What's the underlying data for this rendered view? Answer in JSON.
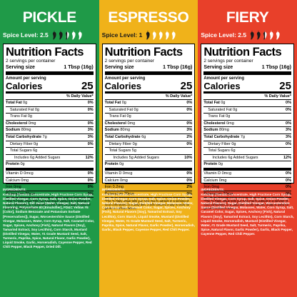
{
  "panels": [
    {
      "name": "PICKLE",
      "bg": "#1f9a48",
      "label_color": "#ffffff",
      "spice_label": "Spice Level: 2.5",
      "peppers_full": 2,
      "peppers_half": 1,
      "peppers_total": 5,
      "pepper_full_color": "#1a1a1a",
      "pepper_empty_color": "#ffffff",
      "ingredients": "Ketchup (Tomato Concentrate, High Fructose Corn Syrup, Distilled Vinegar, Corn Syrup, Salt, Spice, Onion Powder, Natural Flavors), Dill Juice (Water, Vinegar, Salt, Natural Flavoring, Polysorbate 80 [Emulsifier], FD&C Yellow #5 [Color], Sodium Benzoate and Potassium Sorbate [Preservatives]), Sugar, Worcestershire Sauce (Distilled Vinegar, Molasses, Water, Corn Syrup, Salt, Caramel Color, Sugar, Spices, Anchovy [Fish], Natural Flavors [Soy], Tamarind Extract, Soy Lecithin), Corn Starch, Mustard (Distilled Vinegar, Water, #1 Grade Mustard Seed, Salt, Turmeric, Paprika, Spice, Natural Flavor, Garlic Powder), Liquid Smoke, Garlic, Horseradish, Cayenne Pepper, Red Chili Pepper, Black Pepper, Dried Dill."
    },
    {
      "name": "ESPRESSO",
      "bg": "#f0b21a",
      "label_color": "#1a1a1a",
      "spice_label": "Spice Level: 1",
      "peppers_full": 1,
      "peppers_half": 0,
      "peppers_total": 5,
      "pepper_full_color": "#1a1a1a",
      "pepper_empty_color": "#ffffff",
      "ingredients": "Ketchup (Tomato Concentrate, High Fructose Corn Syrup, Distilled Vinegar, Corn Syrup, Salt, Spice, Onion Powder, Natural Flavors), Sugar, Distilled Vinegar, Molasses, Water, Corn Syrup, Salt, Caramel Color, Sugar, Spices, Anchovy [Fish], Natural Flavors [Soy], Tamarind Extract, Soy Lecithin), Corn Starch, Liquid Smoke, Mustard (Distilled Vinegar, Water, #1 Grade Mustard Seed, Salt, Turmeric, Paprika, Spice, Natural Flavor, Garlic Powder), Horseradish, Garlic, Black Pepper, Cayenne Pepper, Red Chili Pepper."
    },
    {
      "name": "FIERY",
      "bg": "#e8402a",
      "label_color": "#ffffff",
      "spice_label": "Spice Level: 2.5",
      "peppers_full": 2,
      "peppers_half": 1,
      "peppers_total": 5,
      "pepper_full_color": "#1a1a1a",
      "pepper_empty_color": "#ffffff",
      "ingredients": "Ketchup (Tomato Concentrate, High Fructose Corn Syrup, Distilled Vinegar, Corn Syrup, Salt, Spice, Onion Powder, Natural Flavors), Sugar, Distilled Vinegar, Worcestershire Sauce (Distilled Vinegar, Molasses, Water, Corn Syrup, Salt, Caramel Color, Sugar, Spices, Anchovy [Fish], Natural Flavors [Soy], Tamarind Extract, Soy Lecithin), Corn Starch, Liquid Smoke, Horseradish, Mustard (Distilled Vinegar, Water, #1 Grade Mustard Seed, Salt, Turmeric, Paprika, Spice, Natural Flavor, Garlic Powder), Garlic, Black Pepper, Cayenne Pepper, Red Chili Pepper."
    }
  ],
  "facts": {
    "title": "Nutrition Facts",
    "servings": "2 servings per container",
    "serving_label": "Serving size",
    "serving_value": "1 Tbsp (16g)",
    "amount_per": "Amount per serving",
    "calories_label": "Calories",
    "calories_value": "25",
    "dv_header": "% Daily Value*",
    "rows": [
      {
        "label": "Total Fat",
        "amt": "0g",
        "pct": "0%",
        "bold": true,
        "indent": 0
      },
      {
        "label": "Saturated Fat",
        "amt": "0g",
        "pct": "0%",
        "bold": false,
        "indent": 1
      },
      {
        "label": "Trans Fat",
        "amt": "0g",
        "pct": "",
        "bold": false,
        "indent": 1,
        "italic_trans": true
      },
      {
        "label": "Cholesterol",
        "amt": "0mg",
        "pct": "0%",
        "bold": true,
        "indent": 0
      },
      {
        "label": "Sodium",
        "amt": "80mg",
        "pct": "3%",
        "bold": true,
        "indent": 0
      },
      {
        "label": "Total Carbohydrate",
        "amt": "7g",
        "pct": "3%",
        "bold": true,
        "indent": 0
      },
      {
        "label": "Dietary Fiber",
        "amt": "0g",
        "pct": "0%",
        "bold": false,
        "indent": 1
      },
      {
        "label": "Total Sugars",
        "amt": "6g",
        "pct": "",
        "bold": false,
        "indent": 1
      },
      {
        "label": "Includes 6g Added Sugars",
        "amt": "",
        "pct": "12%",
        "bold": false,
        "indent": 2
      },
      {
        "label": "Protein",
        "amt": "0g",
        "pct": "",
        "bold": true,
        "indent": 0,
        "thick": true
      },
      {
        "label": "Vitamin D",
        "amt": "0mcg",
        "pct": "0%",
        "bold": false,
        "indent": 0
      },
      {
        "label": "Calcium",
        "amt": "0mg",
        "pct": "0%",
        "bold": false,
        "indent": 0
      },
      {
        "label": "Iron",
        "amt": "0mg",
        "pct": "0%",
        "bold": false,
        "indent": 0
      },
      {
        "label": "Potassium",
        "amt": "30mg",
        "pct": "0%",
        "bold": false,
        "indent": 0
      }
    ],
    "rows_espresso_overrides": {
      "Sodium": {
        "amt": "80mg",
        "pct": "3%"
      },
      "Total Carbohydrate": {
        "amt": "6g",
        "pct": "2%"
      },
      "Total Sugars": {
        "amt": "5g"
      },
      "Includes 6g Added Sugars": {
        "label": "Includes 5g Added Sugars",
        "pct": "10%"
      },
      "Iron": {
        "amt": "0.2mg",
        "pct": "2%"
      }
    },
    "footnote": "*The % Daily Value tells you how much nutrient in a serving of food contributes to a daily diet. 2,000 calories a day is used for general nutrition advice.",
    "ingredients_head": "INGREDIENTS:"
  }
}
